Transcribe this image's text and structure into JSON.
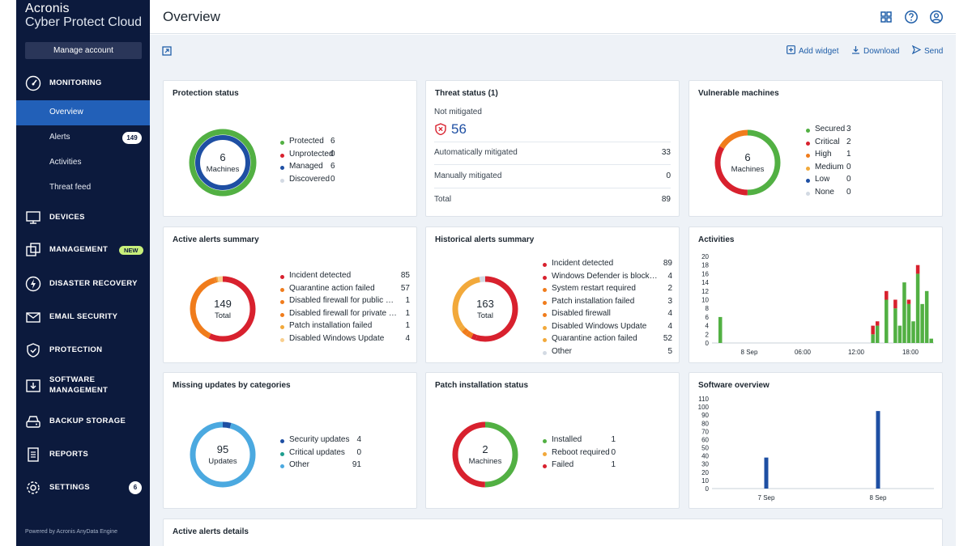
{
  "app": {
    "brand_name": "Acronis",
    "product_name": "Cyber Protect Cloud",
    "manage_account": "Manage account",
    "powered_by": "Powered by Acronis AnyData Engine"
  },
  "sidebar": {
    "sections": [
      {
        "label": "MONITORING",
        "icon": "gauge-icon"
      },
      {
        "label": "DEVICES",
        "icon": "monitor-icon"
      },
      {
        "label": "MANAGEMENT",
        "icon": "management-icon",
        "badge": "NEW"
      },
      {
        "label": "DISASTER RECOVERY",
        "icon": "lightning-icon"
      },
      {
        "label": "EMAIL SECURITY",
        "icon": "envelope-icon"
      },
      {
        "label": "PROTECTION",
        "icon": "shield-icon"
      },
      {
        "label": "SOFTWARE\nMANAGEMENT",
        "icon": "software-icon"
      },
      {
        "label": "BACKUP STORAGE",
        "icon": "storage-icon"
      },
      {
        "label": "REPORTS",
        "icon": "report-icon"
      },
      {
        "label": "SETTINGS",
        "icon": "gear-icon",
        "badge": "6"
      }
    ],
    "monitoring_items": [
      {
        "label": "Overview",
        "active": true
      },
      {
        "label": "Alerts",
        "badge": "149"
      },
      {
        "label": "Activities"
      },
      {
        "label": "Threat feed"
      }
    ]
  },
  "header": {
    "title": "Overview",
    "icons": [
      "grid-icon",
      "help-icon",
      "user-icon"
    ]
  },
  "toolbar": {
    "add_widget": "Add widget",
    "download": "Download",
    "send": "Send"
  },
  "colors": {
    "green": "#52b043",
    "red": "#d8212e",
    "blue": "#1e4fa3",
    "orange": "#f07c1c",
    "amber": "#f2a93b",
    "light_gray": "#d3dae3",
    "sky": "#4ba9e0",
    "teal": "#1e9e8e",
    "pale_orange": "#f9cf8e",
    "accent": "#2260b8"
  },
  "widgets": {
    "protection_status": {
      "title": "Protection status",
      "center_value": "6",
      "center_label": "Machines",
      "legend": [
        {
          "label": "Protected",
          "value": "6",
          "color": "#52b043"
        },
        {
          "label": "Unprotected",
          "value": "0",
          "color": "#d8212e"
        },
        {
          "label": "Managed",
          "value": "6",
          "color": "#1e4fa3"
        },
        {
          "label": "Discovered",
          "value": "0",
          "color": "#d3dae3"
        }
      ]
    },
    "threat_status": {
      "title": "Threat status (1)",
      "not_mitigated_label": "Not mitigated",
      "not_mitigated_value": "56",
      "rows": [
        {
          "label": "Automatically mitigated",
          "value": "33"
        },
        {
          "label": "Manually mitigated",
          "value": "0"
        },
        {
          "label": "Total",
          "value": "89"
        }
      ]
    },
    "vulnerable_machines": {
      "title": "Vulnerable machines",
      "center_value": "6",
      "center_label": "Machines",
      "legend": [
        {
          "label": "Secured",
          "value": "3",
          "color": "#52b043"
        },
        {
          "label": "Critical",
          "value": "2",
          "color": "#d8212e"
        },
        {
          "label": "High",
          "value": "1",
          "color": "#f07c1c"
        },
        {
          "label": "Medium",
          "value": "0",
          "color": "#f2a93b"
        },
        {
          "label": "Low",
          "value": "0",
          "color": "#1e4fa3"
        },
        {
          "label": "None",
          "value": "0",
          "color": "#d3dae3"
        }
      ]
    },
    "active_alerts_summary": {
      "title": "Active alerts summary",
      "center_value": "149",
      "center_label": "Total",
      "legend": [
        {
          "label": "Incident detected",
          "value": "85",
          "color": "#d8212e"
        },
        {
          "label": "Quarantine action failed",
          "value": "57",
          "color": "#f07c1c"
        },
        {
          "label": "Disabled firewall for public ne...",
          "value": "1",
          "color": "#f07c1c"
        },
        {
          "label": "Disabled firewall for private n...",
          "value": "1",
          "color": "#f07c1c"
        },
        {
          "label": "Patch installation failed",
          "value": "1",
          "color": "#f2a93b"
        },
        {
          "label": "Disabled Windows Update",
          "value": "4",
          "color": "#f9cf8e"
        }
      ]
    },
    "historical_alerts_summary": {
      "title": "Historical alerts summary",
      "center_value": "163",
      "center_label": "Total",
      "legend": [
        {
          "label": "Incident detected",
          "value": "89",
          "color": "#d8212e"
        },
        {
          "label": "Windows Defender is blocked...",
          "value": "4",
          "color": "#d8212e"
        },
        {
          "label": "System restart required",
          "value": "2",
          "color": "#f07c1c"
        },
        {
          "label": "Patch installation failed",
          "value": "3",
          "color": "#f07c1c"
        },
        {
          "label": "Disabled firewall",
          "value": "4",
          "color": "#f07c1c"
        },
        {
          "label": "Disabled Windows Update",
          "value": "4",
          "color": "#f2a93b"
        },
        {
          "label": "Quarantine action failed",
          "value": "52",
          "color": "#f2a93b"
        },
        {
          "label": "Other",
          "value": "5",
          "color": "#d3dae3"
        }
      ]
    },
    "activities": {
      "title": "Activities"
    },
    "missing_updates": {
      "title": "Missing updates by categories",
      "center_value": "95",
      "center_label": "Updates",
      "legend": [
        {
          "label": "Security updates",
          "value": "4",
          "color": "#1e4fa3"
        },
        {
          "label": "Critical updates",
          "value": "0",
          "color": "#1e9e8e"
        },
        {
          "label": "Other",
          "value": "91",
          "color": "#4ba9e0"
        }
      ]
    },
    "patch_installation": {
      "title": "Patch installation status",
      "center_value": "2",
      "center_label": "Machines",
      "legend": [
        {
          "label": "Installed",
          "value": "1",
          "color": "#52b043"
        },
        {
          "label": "Reboot required",
          "value": "0",
          "color": "#f2a93b"
        },
        {
          "label": "Failed",
          "value": "1",
          "color": "#d8212e"
        }
      ]
    },
    "software_overview": {
      "title": "Software overview"
    },
    "active_alerts_details": {
      "title": "Active alerts details"
    }
  },
  "chart_data": [
    {
      "type": "bar",
      "title": "Activities",
      "x_tick_labels": [
        "8 Sep",
        "06:00",
        "12:00",
        "18:00"
      ],
      "ylim": [
        0,
        20
      ],
      "y_ticks": [
        0,
        2,
        4,
        6,
        8,
        10,
        12,
        14,
        16,
        18,
        20
      ],
      "grid": false,
      "series": [
        {
          "color": "#52b043",
          "values": [
            6,
            0,
            0,
            0,
            0,
            0,
            0,
            0,
            0,
            0,
            0,
            0,
            0,
            0,
            0,
            0,
            0,
            0,
            0,
            0,
            0,
            0,
            0,
            0,
            0,
            0,
            0,
            0,
            0,
            0,
            0,
            0,
            0,
            0,
            2,
            4,
            0,
            10,
            0,
            8,
            4,
            14,
            9,
            5,
            16,
            9,
            12,
            1
          ]
        },
        {
          "color": "#d8212e",
          "values": [
            0,
            0,
            0,
            0,
            0,
            0,
            0,
            0,
            0,
            0,
            0,
            0,
            0,
            0,
            0,
            0,
            0,
            0,
            0,
            0,
            0,
            0,
            0,
            0,
            0,
            0,
            0,
            0,
            0,
            0,
            0,
            0,
            0,
            0,
            2,
            1,
            0,
            2,
            0,
            2,
            0,
            0,
            1,
            0,
            2,
            0,
            0,
            0
          ]
        }
      ]
    },
    {
      "type": "bar",
      "title": "Software overview",
      "categories": [
        "7 Sep",
        "8 Sep"
      ],
      "values": [
        38,
        95
      ],
      "color": "#1e4fa3",
      "ylim": [
        0,
        110
      ],
      "y_ticks": [
        0,
        10,
        20,
        30,
        40,
        50,
        60,
        70,
        80,
        90,
        100,
        110
      ],
      "grid": false
    }
  ]
}
